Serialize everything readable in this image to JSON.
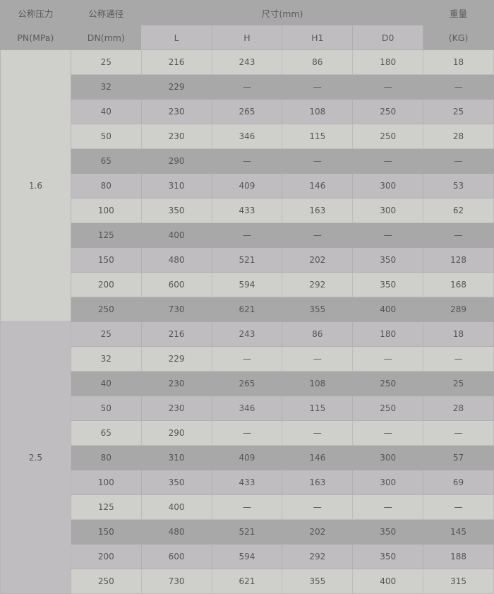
{
  "header": {
    "pn_cn": "公称压力",
    "pn": "PN(MPa)",
    "dn_cn": "公称通径",
    "dn": "DN(mm)",
    "size": "尺寸(mm)",
    "weight_cn": "重量",
    "weight": "(KG)",
    "cols": [
      "L",
      "H",
      "H1",
      "D0"
    ]
  },
  "groups": [
    {
      "pn": "1.6",
      "rows": [
        [
          "25",
          "216",
          "243",
          "86",
          "180",
          "18"
        ],
        [
          "32",
          "229",
          "—",
          "—",
          "—",
          "—"
        ],
        [
          "40",
          "230",
          "265",
          "108",
          "250",
          "25"
        ],
        [
          "50",
          "230",
          "346",
          "115",
          "250",
          "28"
        ],
        [
          "65",
          "290",
          "—",
          "—",
          "—",
          "—"
        ],
        [
          "80",
          "310",
          "409",
          "146",
          "300",
          "53"
        ],
        [
          "100",
          "350",
          "433",
          "163",
          "300",
          "62"
        ],
        [
          "125",
          "400",
          "—",
          "—",
          "—",
          "—"
        ],
        [
          "150",
          "480",
          "521",
          "202",
          "350",
          "128"
        ],
        [
          "200",
          "600",
          "594",
          "292",
          "350",
          "168"
        ],
        [
          "250",
          "730",
          "621",
          "355",
          "400",
          "289"
        ]
      ]
    },
    {
      "pn": "2.5",
      "rows": [
        [
          "25",
          "216",
          "243",
          "86",
          "180",
          "18"
        ],
        [
          "32",
          "229",
          "—",
          "—",
          "—",
          "—"
        ],
        [
          "40",
          "230",
          "265",
          "108",
          "250",
          "25"
        ],
        [
          "50",
          "230",
          "346",
          "115",
          "250",
          "28"
        ],
        [
          "65",
          "290",
          "—",
          "—",
          "—",
          "—"
        ],
        [
          "80",
          "310",
          "409",
          "146",
          "300",
          "57"
        ],
        [
          "100",
          "350",
          "433",
          "163",
          "300",
          "69"
        ],
        [
          "125",
          "400",
          "—",
          "—",
          "—",
          "—"
        ],
        [
          "150",
          "480",
          "521",
          "202",
          "350",
          "145"
        ],
        [
          "200",
          "600",
          "594",
          "292",
          "350",
          "188"
        ],
        [
          "250",
          "730",
          "621",
          "355",
          "400",
          "315"
        ]
      ]
    }
  ]
}
